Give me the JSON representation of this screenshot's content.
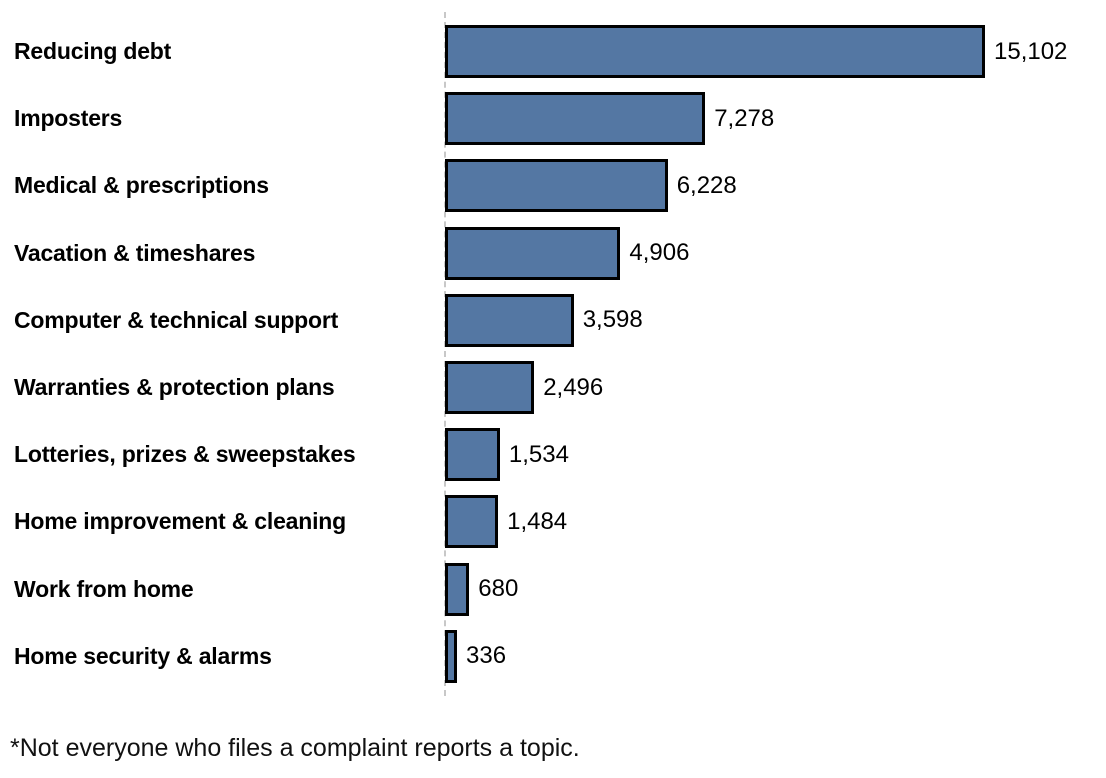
{
  "chart_data": {
    "type": "bar",
    "orientation": "horizontal",
    "title": "",
    "xlabel": "",
    "ylabel": "",
    "categories": [
      "Reducing debt",
      "Imposters",
      "Medical & prescriptions",
      "Vacation & timeshares",
      "Computer & technical support",
      "Warranties & protection plans",
      "Lotteries, prizes & sweepstakes",
      "Home improvement & cleaning",
      "Work from home",
      "Home security & alarms"
    ],
    "values": [
      15102,
      7278,
      6228,
      4906,
      3598,
      2496,
      1534,
      1484,
      680,
      336
    ],
    "value_labels": [
      "15,102",
      "7,278",
      "6,228",
      "4,906",
      "3,598",
      "2,496",
      "1,534",
      "1,484",
      "680",
      "336"
    ],
    "xlim": [
      0,
      15102
    ],
    "grid": false,
    "legend_position": "none",
    "bar_color": "#5477a3",
    "bar_border_color": "#000000",
    "axis_line_color": "#c8c8c8",
    "footnote": "*Not everyone who files a complaint reports a topic."
  }
}
